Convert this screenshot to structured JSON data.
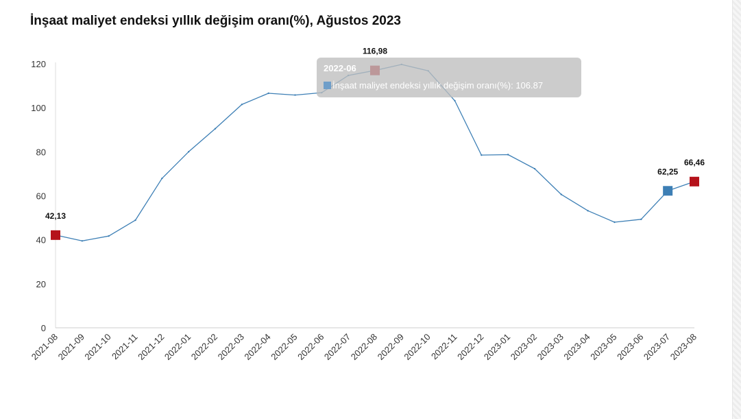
{
  "chart_data": {
    "type": "line",
    "title": "İnşaat maliyet endeksi yıllık değişim oranı(%), Ağustos 2023",
    "categories": [
      "2021-08",
      "2021-09",
      "2021-10",
      "2021-11",
      "2021-12",
      "2022-01",
      "2022-02",
      "2022-03",
      "2022-04",
      "2022-05",
      "2022-06",
      "2022-07",
      "2022-08",
      "2022-09",
      "2022-10",
      "2022-11",
      "2022-12",
      "2023-01",
      "2023-02",
      "2023-03",
      "2023-04",
      "2023-05",
      "2023-06",
      "2023-07",
      "2023-08"
    ],
    "series": [
      {
        "name": "İnşaat maliyet endeksi yıllık değişim oranı(%)",
        "values": [
          42.13,
          39.5,
          41.7,
          48.9,
          67.9,
          80.0,
          90.5,
          101.5,
          106.6,
          105.8,
          106.87,
          114.7,
          116.98,
          119.7,
          116.8,
          103.2,
          78.5,
          78.7,
          72.3,
          60.6,
          53.2,
          48.0,
          49.3,
          62.25,
          66.46
        ],
        "color": "#3d7fb5"
      }
    ],
    "ylim": [
      0,
      120
    ],
    "yticks": [
      0,
      20,
      40,
      60,
      80,
      100,
      120
    ],
    "ytick_labels": [
      "0",
      "20",
      "40",
      "60",
      "80",
      "100",
      "120"
    ],
    "grid": false,
    "data_labels": [
      {
        "index": 0,
        "text": "42,13",
        "marker_color": "#b5121b"
      },
      {
        "index": 12,
        "text": "116,98",
        "marker_color": "#b5121b"
      },
      {
        "index": 23,
        "text": "62,25",
        "marker_color": "#3d7fb5"
      },
      {
        "index": 24,
        "text": "66,46",
        "marker_color": "#b5121b"
      }
    ],
    "tooltip": {
      "category": "2022-06",
      "text": "İnşaat maliyet endeksi yıllık değişim oranı(%): 106.87"
    }
  }
}
